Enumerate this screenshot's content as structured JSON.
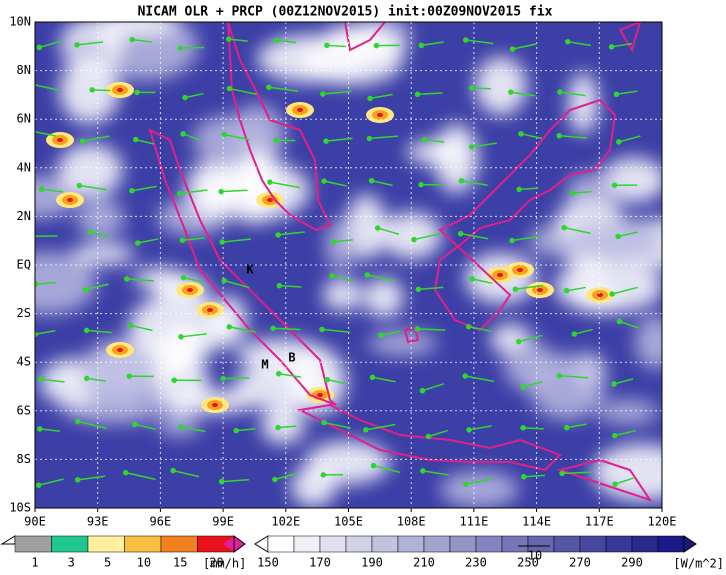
{
  "header": {
    "title": "NICAM OLR + PRCP (00Z12NOV2015) init:00Z09NOV2015 fix"
  },
  "map": {
    "longitude_labels": [
      "90E",
      "93E",
      "96E",
      "99E",
      "102E",
      "105E",
      "108E",
      "111E",
      "114E",
      "117E",
      "120E"
    ],
    "latitude_labels": [
      "10N",
      "8N",
      "6N",
      "4N",
      "2N",
      "EQ",
      "2S",
      "4S",
      "6S",
      "8S",
      "10S"
    ],
    "markers": [
      "K",
      "M",
      "B"
    ]
  },
  "precip_legend": {
    "labels": [
      1,
      3,
      5,
      10,
      15,
      20
    ],
    "unit": "[mm/h]"
  },
  "olr_legend": {
    "labels": [
      150,
      170,
      190,
      210,
      230,
      250,
      270,
      290
    ],
    "unit": "[W/m^2]",
    "vector_label": "10"
  }
}
